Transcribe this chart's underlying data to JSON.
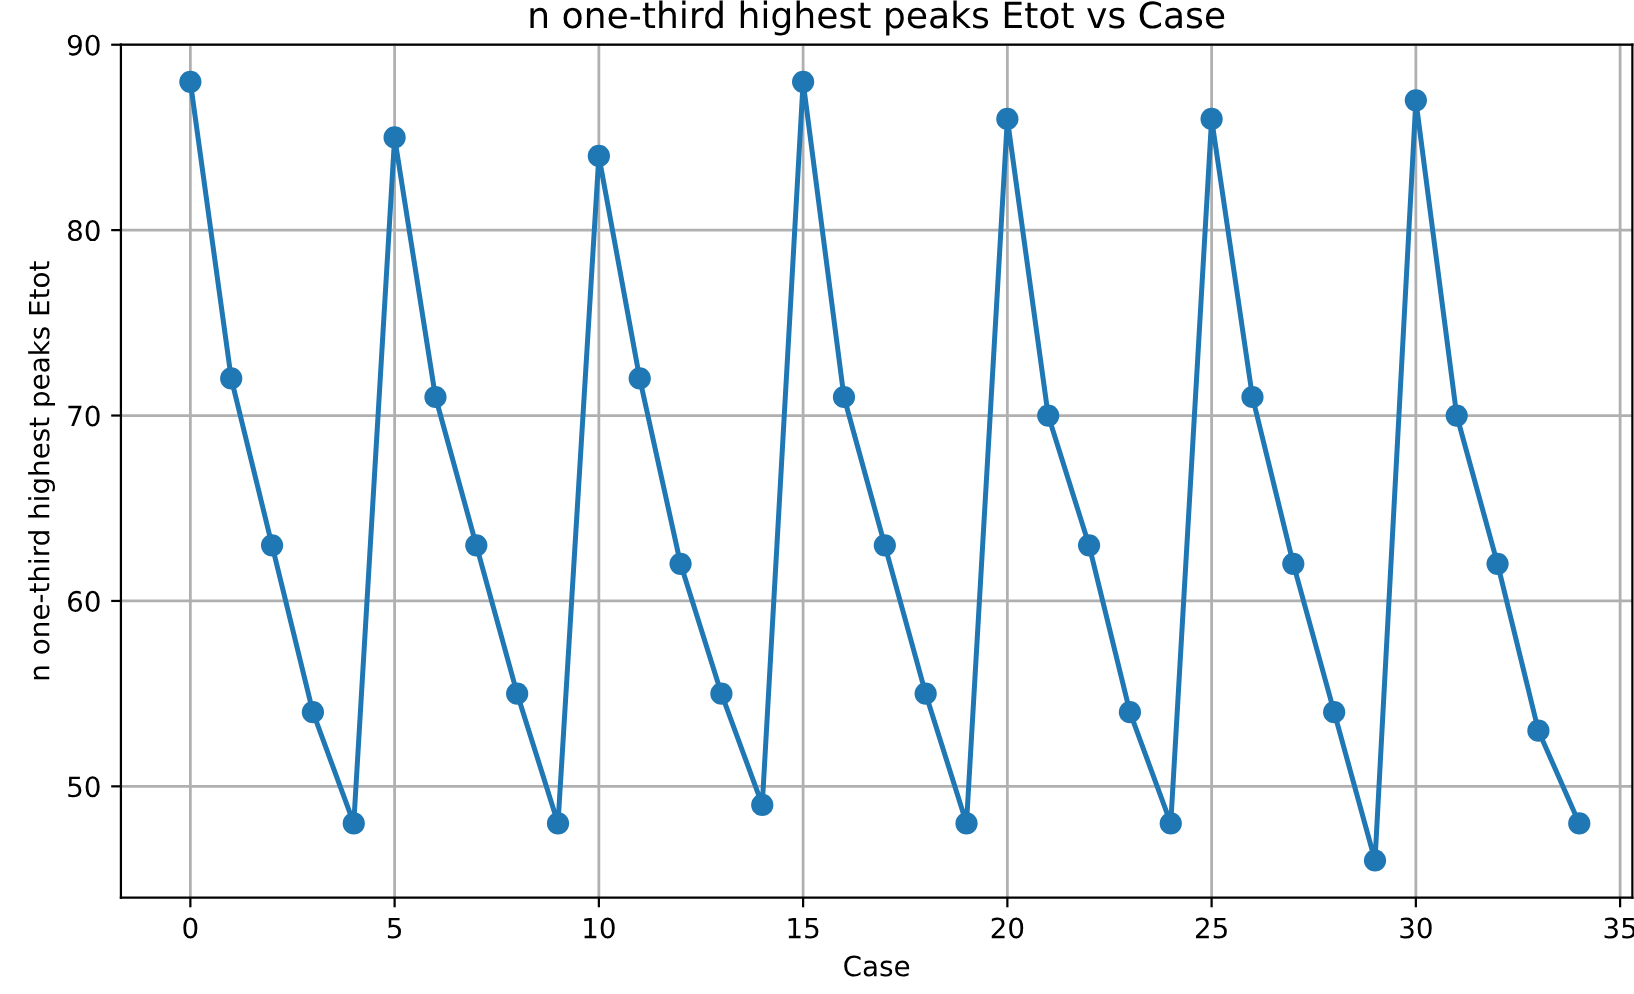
{
  "chart_data": {
    "type": "line",
    "title": "n one-third highest peaks Etot vs Case",
    "xlabel": "Case",
    "ylabel": "n one-third highest peaks Etot",
    "x": [
      0,
      1,
      2,
      3,
      4,
      5,
      6,
      7,
      8,
      9,
      10,
      11,
      12,
      13,
      14,
      15,
      16,
      17,
      18,
      19,
      20,
      21,
      22,
      23,
      24,
      25,
      26,
      27,
      28,
      29,
      30,
      31,
      32,
      33,
      34
    ],
    "series": [
      {
        "color": "#1f77b4",
        "values": [
          88,
          72,
          63,
          54,
          48,
          85,
          71,
          63,
          55,
          48,
          84,
          72,
          62,
          55,
          49,
          88,
          71,
          63,
          55,
          48,
          86,
          70,
          63,
          54,
          48,
          86,
          71,
          62,
          54,
          46,
          87,
          70,
          62,
          53,
          48
        ]
      }
    ],
    "xlim": [
      -1.7,
      35.3
    ],
    "xticks": [
      0,
      5,
      10,
      15,
      20,
      25,
      30,
      35
    ],
    "ylim": [
      44,
      90
    ],
    "yticks": [
      50,
      60,
      70,
      80,
      90
    ],
    "grid": true,
    "marker": "circle",
    "line_style": "solid"
  }
}
